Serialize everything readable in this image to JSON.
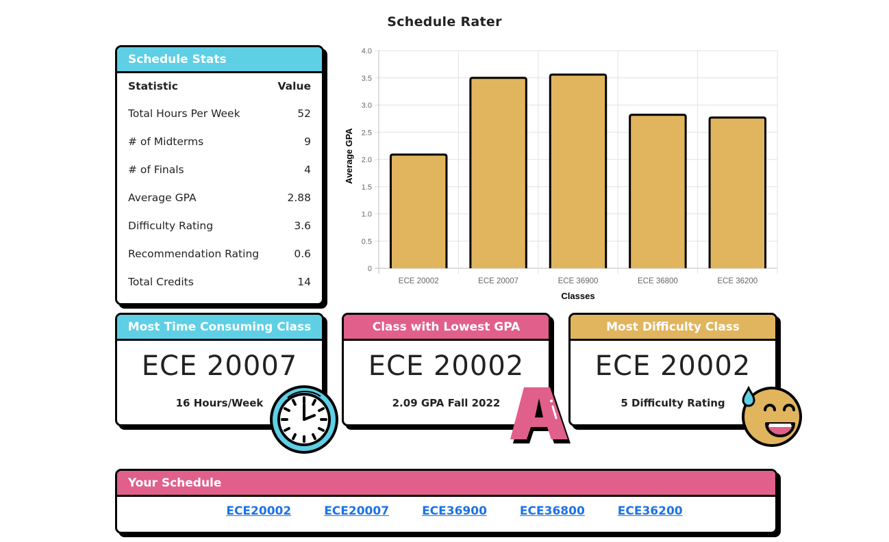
{
  "page": {
    "title": "Schedule Rater"
  },
  "stats_card": {
    "title": "Schedule Stats",
    "header": {
      "statistic": "Statistic",
      "value": "Value"
    },
    "rows": [
      {
        "label": "Total Hours Per Week",
        "value": "52"
      },
      {
        "label": "# of Midterms",
        "value": "9"
      },
      {
        "label": "# of Finals",
        "value": "4"
      },
      {
        "label": "Average GPA",
        "value": "2.88"
      },
      {
        "label": "Difficulty Rating",
        "value": "3.6"
      },
      {
        "label": "Recommendation Rating",
        "value": "0.6"
      },
      {
        "label": "Total Credits",
        "value": "14"
      }
    ]
  },
  "cards": {
    "time": {
      "title": "Most Time Consuming Class",
      "class": "ECE 20007",
      "detail": "16 Hours/Week",
      "icon": "clock-icon",
      "color": "#5ecfe5"
    },
    "gpa": {
      "title": "Class with Lowest GPA",
      "class": "ECE 20002",
      "detail": "2.09 GPA Fall 2022",
      "icon": "letter-a-grade-icon",
      "color": "#e0608b"
    },
    "difficulty": {
      "title": "Most Difficulty Class",
      "class": "ECE 20002",
      "detail": "5 Difficulty Rating",
      "icon": "sweat-smile-emoji-icon",
      "color": "#e1b45e"
    }
  },
  "schedule": {
    "title": "Your Schedule",
    "links": [
      "ECE20002",
      "ECE20007",
      "ECE36900",
      "ECE36800",
      "ECE36200"
    ],
    "link_color": "#1a73e8"
  },
  "chart_data": {
    "type": "bar",
    "title": "",
    "categories": [
      "ECE 20002",
      "ECE 20007",
      "ECE 36900",
      "ECE 36800",
      "ECE 36200"
    ],
    "values": [
      2.09,
      3.5,
      3.56,
      2.82,
      2.77
    ],
    "xlabel": "Classes",
    "ylabel": "Average GPA",
    "ylim": [
      0,
      4.0
    ],
    "yticks": [
      "0",
      "0.5",
      "1.0",
      "1.5",
      "2.0",
      "2.5",
      "3.0",
      "3.5",
      "4.0"
    ],
    "grid": true,
    "legend": "none",
    "bar_color": "#e1b45e",
    "bar_border": "#000000"
  }
}
